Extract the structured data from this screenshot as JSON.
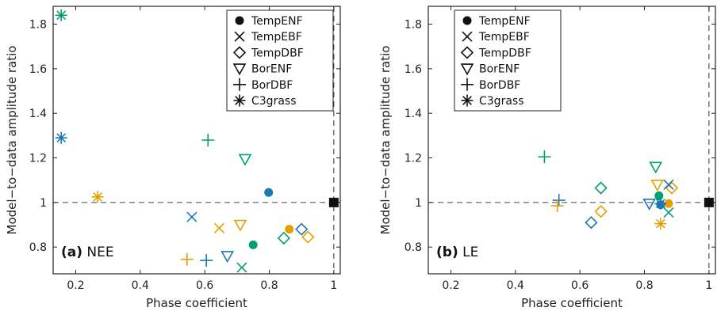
{
  "colors": {
    "teal": "#009e73",
    "blue": "#1a78b4",
    "orange": "#e69f00",
    "black": "#111111"
  },
  "marker_shapes": {
    "TempENF": "filled-circle-icon",
    "TempEBF": "x-mark-icon",
    "TempDBF": "diamond-icon",
    "BorENF": "down-triangle-icon",
    "BorDBF": "plus-icon",
    "C3grass": "asterisk-icon"
  },
  "chart_data": [
    {
      "type": "scatter",
      "panel": "(a)",
      "panel_name": "NEE",
      "xlabel": "Phase coefficient",
      "ylabel": "Model−to−data amplitude ratio",
      "xlim": [
        0.13,
        1.02
      ],
      "ylim": [
        0.68,
        1.88
      ],
      "xticks": [
        "0.2",
        "0.4",
        "0.6",
        "0.8",
        "1"
      ],
      "yticks": [
        "0.8",
        "1",
        "1.2",
        "1.4",
        "1.6",
        "1.8"
      ],
      "xtick_values": [
        0.2,
        0.4,
        0.6,
        0.8,
        1.0
      ],
      "ytick_values": [
        0.8,
        1.0,
        1.2,
        1.4,
        1.6,
        1.8
      ],
      "reference_lines": {
        "x": 1.0,
        "y": 1.0,
        "style": "dashed"
      },
      "reference_point": {
        "x": 1.0,
        "y": 1.0
      },
      "grid": false,
      "legend": {
        "placement": "top-right",
        "entries": [
          "TempENF",
          "TempEBF",
          "TempDBF",
          "BorENF",
          "BorDBF",
          "C3grass"
        ]
      },
      "points": [
        {
          "pft": "C3grass",
          "color": "teal",
          "x": 0.155,
          "y": 1.84
        },
        {
          "pft": "C3grass",
          "color": "blue",
          "x": 0.155,
          "y": 1.29
        },
        {
          "pft": "C3grass",
          "color": "orange",
          "x": 0.268,
          "y": 1.025
        },
        {
          "pft": "BorDBF",
          "color": "teal",
          "x": 0.61,
          "y": 1.28
        },
        {
          "pft": "BorDBF",
          "color": "blue",
          "x": 0.605,
          "y": 0.74
        },
        {
          "pft": "BorDBF",
          "color": "orange",
          "x": 0.545,
          "y": 0.745
        },
        {
          "pft": "BorENF",
          "color": "teal",
          "x": 0.725,
          "y": 1.195
        },
        {
          "pft": "BorENF",
          "color": "orange",
          "x": 0.71,
          "y": 0.9
        },
        {
          "pft": "BorENF",
          "color": "blue",
          "x": 0.67,
          "y": 0.76
        },
        {
          "pft": "TempENF",
          "color": "blue",
          "x": 0.798,
          "y": 1.045
        },
        {
          "pft": "TempENF",
          "color": "orange",
          "x": 0.862,
          "y": 0.88
        },
        {
          "pft": "TempENF",
          "color": "teal",
          "x": 0.75,
          "y": 0.81
        },
        {
          "pft": "TempEBF",
          "color": "blue",
          "x": 0.56,
          "y": 0.935
        },
        {
          "pft": "TempEBF",
          "color": "orange",
          "x": 0.645,
          "y": 0.885
        },
        {
          "pft": "TempEBF",
          "color": "teal",
          "x": 0.715,
          "y": 0.708
        },
        {
          "pft": "TempDBF",
          "color": "blue",
          "x": 0.9,
          "y": 0.88
        },
        {
          "pft": "TempDBF",
          "color": "orange",
          "x": 0.92,
          "y": 0.845
        },
        {
          "pft": "TempDBF",
          "color": "teal",
          "x": 0.845,
          "y": 0.84
        }
      ]
    },
    {
      "type": "scatter",
      "panel": "(b)",
      "panel_name": "LE",
      "xlabel": "Phase coefficient",
      "ylabel": "Model−to−data amplitude ratio",
      "xlim": [
        0.13,
        1.02
      ],
      "ylim": [
        0.68,
        1.88
      ],
      "xticks": [
        "0.2",
        "0.4",
        "0.6",
        "0.8",
        "1"
      ],
      "yticks": [
        "0.8",
        "1",
        "1.2",
        "1.4",
        "1.6",
        "1.8"
      ],
      "xtick_values": [
        0.2,
        0.4,
        0.6,
        0.8,
        1.0
      ],
      "ytick_values": [
        0.8,
        1.0,
        1.2,
        1.4,
        1.6,
        1.8
      ],
      "reference_lines": {
        "x": 1.0,
        "y": 1.0,
        "style": "dashed"
      },
      "reference_point": {
        "x": 1.0,
        "y": 1.0
      },
      "grid": false,
      "legend": {
        "placement": "top-left",
        "entries": [
          "TempENF",
          "TempEBF",
          "TempDBF",
          "BorENF",
          "BorDBF",
          "C3grass"
        ]
      },
      "points": [
        {
          "pft": "BorDBF",
          "color": "teal",
          "x": 0.49,
          "y": 1.205
        },
        {
          "pft": "BorDBF",
          "color": "blue",
          "x": 0.535,
          "y": 1.01
        },
        {
          "pft": "BorDBF",
          "color": "orange",
          "x": 0.53,
          "y": 0.985
        },
        {
          "pft": "TempDBF",
          "color": "teal",
          "x": 0.665,
          "y": 1.065
        },
        {
          "pft": "TempDBF",
          "color": "orange",
          "x": 0.665,
          "y": 0.96
        },
        {
          "pft": "TempDBF",
          "color": "blue",
          "x": 0.635,
          "y": 0.91
        },
        {
          "pft": "TempDBF",
          "color": "orange",
          "x": 0.885,
          "y": 1.065
        },
        {
          "pft": "BorENF",
          "color": "teal",
          "x": 0.835,
          "y": 1.16
        },
        {
          "pft": "BorENF",
          "color": "orange",
          "x": 0.84,
          "y": 1.08
        },
        {
          "pft": "BorENF",
          "color": "blue",
          "x": 0.815,
          "y": 0.995
        },
        {
          "pft": "TempENF",
          "color": "teal",
          "x": 0.845,
          "y": 1.03
        },
        {
          "pft": "TempENF",
          "color": "orange",
          "x": 0.875,
          "y": 0.995
        },
        {
          "pft": "TempENF",
          "color": "blue",
          "x": 0.85,
          "y": 0.99
        },
        {
          "pft": "TempEBF",
          "color": "blue",
          "x": 0.875,
          "y": 1.08
        },
        {
          "pft": "TempEBF",
          "color": "teal",
          "x": 0.875,
          "y": 0.955
        },
        {
          "pft": "C3grass",
          "color": "blue",
          "x": 0.85,
          "y": 0.995
        },
        {
          "pft": "C3grass",
          "color": "orange",
          "x": 0.85,
          "y": 0.905
        }
      ]
    }
  ]
}
